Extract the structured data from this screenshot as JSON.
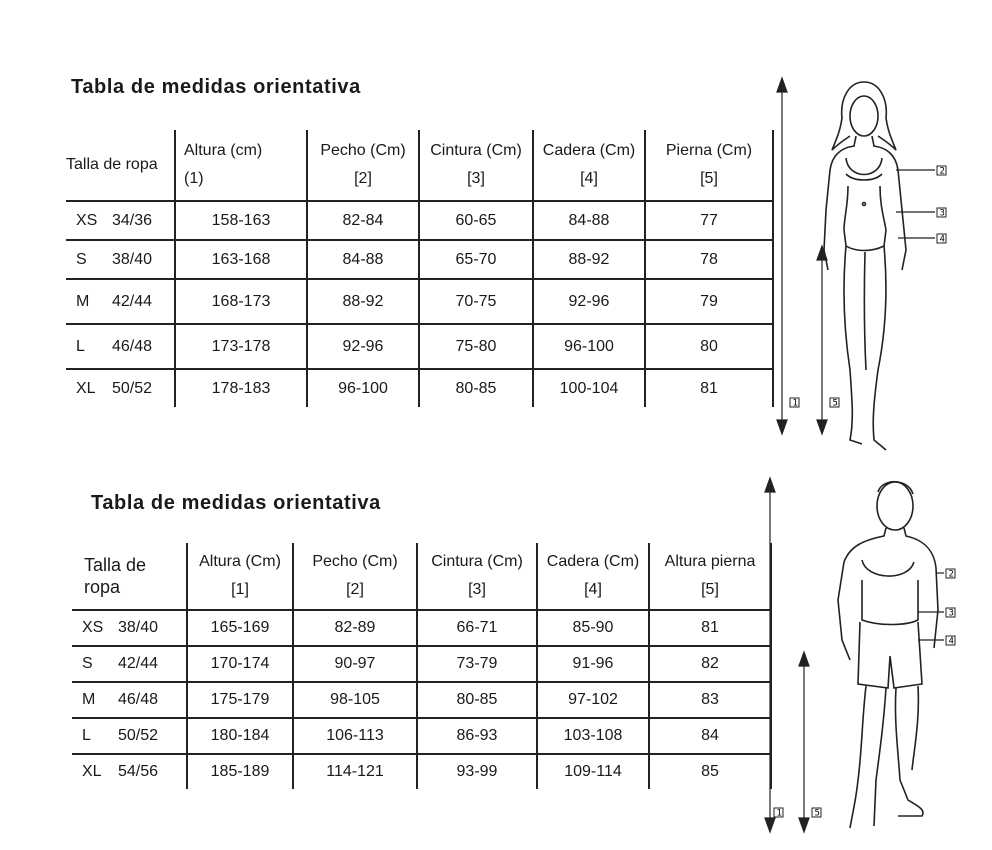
{
  "women": {
    "title": "Tabla de medidas orientativa",
    "headers": [
      {
        "label": "Talla de ropa",
        "index": ""
      },
      {
        "label": "Altura (cm)",
        "index": "(1)"
      },
      {
        "label": "Pecho (Cm)",
        "index": "[2]"
      },
      {
        "label": "Cintura (Cm)",
        "index": "[3]"
      },
      {
        "label": "Cadera (Cm)",
        "index": "[4]"
      },
      {
        "label": "Pierna (Cm)",
        "index": "[5]"
      }
    ],
    "rows": [
      {
        "size": "XS",
        "eu": "34/36",
        "altura": "158-163",
        "pecho": "82-84",
        "cintura": "60-65",
        "cadera": "84-88",
        "pierna": "77"
      },
      {
        "size": "S",
        "eu": "38/40",
        "altura": "163-168",
        "pecho": "84-88",
        "cintura": "65-70",
        "cadera": "88-92",
        "pierna": "78"
      },
      {
        "size": "M",
        "eu": "42/44",
        "altura": "168-173",
        "pecho": "88-92",
        "cintura": "70-75",
        "cadera": "92-96",
        "pierna": "79"
      },
      {
        "size": "L",
        "eu": "46/48",
        "altura": "173-178",
        "pecho": "92-96",
        "cintura": "75-80",
        "cadera": "96-100",
        "pierna": "80"
      },
      {
        "size": "XL",
        "eu": "50/52",
        "altura": "178-183",
        "pecho": "96-100",
        "cintura": "80-85",
        "cadera": "100-104",
        "pierna": "81"
      }
    ],
    "figure_labels": {
      "altura": "1",
      "pecho": "2",
      "cintura": "3",
      "cadera": "4",
      "pierna": "5"
    }
  },
  "men": {
    "title": "Tabla de medidas orientativa",
    "headers": [
      {
        "label": "Talla de ropa",
        "index": ""
      },
      {
        "label": "Altura (Cm)",
        "index": "[1]"
      },
      {
        "label": "Pecho  (Cm)",
        "index": "[2]"
      },
      {
        "label": "Cintura (Cm)",
        "index": "[3]"
      },
      {
        "label": "Cadera (Cm)",
        "index": "[4]"
      },
      {
        "label": "Altura pierna",
        "index": "[5]"
      }
    ],
    "rows": [
      {
        "size": "XS",
        "eu": "38/40",
        "altura": "165-169",
        "pecho": "82-89",
        "cintura": "66-71",
        "cadera": "85-90",
        "pierna": "81"
      },
      {
        "size": "S",
        "eu": "42/44",
        "altura": "170-174",
        "pecho": "90-97",
        "cintura": "73-79",
        "cadera": "91-96",
        "pierna": "82"
      },
      {
        "size": "M",
        "eu": "46/48",
        "altura": "175-179",
        "pecho": "98-105",
        "cintura": "80-85",
        "cadera": "97-102",
        "pierna": "83"
      },
      {
        "size": "L",
        "eu": "50/52",
        "altura": "180-184",
        "pecho": "106-113",
        "cintura": "86-93",
        "cadera": "103-108",
        "pierna": "84"
      },
      {
        "size": "XL",
        "eu": "54/56",
        "altura": "185-189",
        "pecho": "114-121",
        "cintura": "93-99",
        "cadera": "109-114",
        "pierna": "85"
      }
    ],
    "figure_labels": {
      "altura": "1",
      "pecho": "2",
      "cintura": "3",
      "cadera": "4",
      "pierna": "5"
    }
  }
}
